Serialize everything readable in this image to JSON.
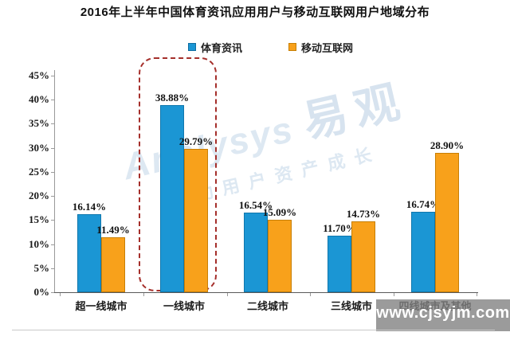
{
  "title": "2016年上半年中国体育资讯应用用户与移动互联网用户地域分布",
  "legend": {
    "items": [
      {
        "label": "体育资讯",
        "color": "#1b96d4",
        "border": "#0f6da0"
      },
      {
        "label": "移动互联网",
        "color": "#f8a11b",
        "border": "#c77f05"
      }
    ]
  },
  "chart_data": {
    "type": "bar",
    "title": "2016年上半年中国体育资讯应用用户与移动互联网用户地域分布",
    "categories": [
      "超一线城市",
      "一线城市",
      "二线城市",
      "三线城市",
      "四线城市及其他"
    ],
    "series": [
      {
        "name": "体育资讯",
        "color": "#1b96d4",
        "values": [
          16.14,
          38.88,
          16.54,
          11.7,
          16.74
        ]
      },
      {
        "name": "移动互联网",
        "color": "#f8a11b",
        "values": [
          11.49,
          29.79,
          15.09,
          14.73,
          28.9
        ]
      }
    ],
    "value_format": "percent",
    "data_labels": [
      "16.14%",
      "11.49%",
      "38.88%",
      "29.79%",
      "16.54%",
      "15.09%",
      "11.70%",
      "14.73%",
      "16.74%",
      "28.90%"
    ],
    "ylim": [
      0,
      45
    ],
    "ytick_step": 5,
    "ytick_labels": [
      "0%",
      "5%",
      "10%",
      "15%",
      "20%",
      "25%",
      "30%",
      "35%",
      "40%",
      "45%"
    ],
    "xlabel": "",
    "ylabel": "",
    "grid": false,
    "legend_position": "top",
    "highlight_category": "一线城市",
    "highlight_style": "red-dashed-rounded-box"
  },
  "watermark": {
    "brand_en": "Analysys",
    "brand_cn": "易观",
    "slogan": "驱动用户资产成长"
  },
  "footer": {
    "url": "www.cjsyjm.com"
  },
  "colors": {
    "series_blue": "#1b96d4",
    "series_orange": "#f8a11b",
    "highlight_red": "#a52f2b",
    "axis": "#595959",
    "url_box_gray": "#828282"
  }
}
